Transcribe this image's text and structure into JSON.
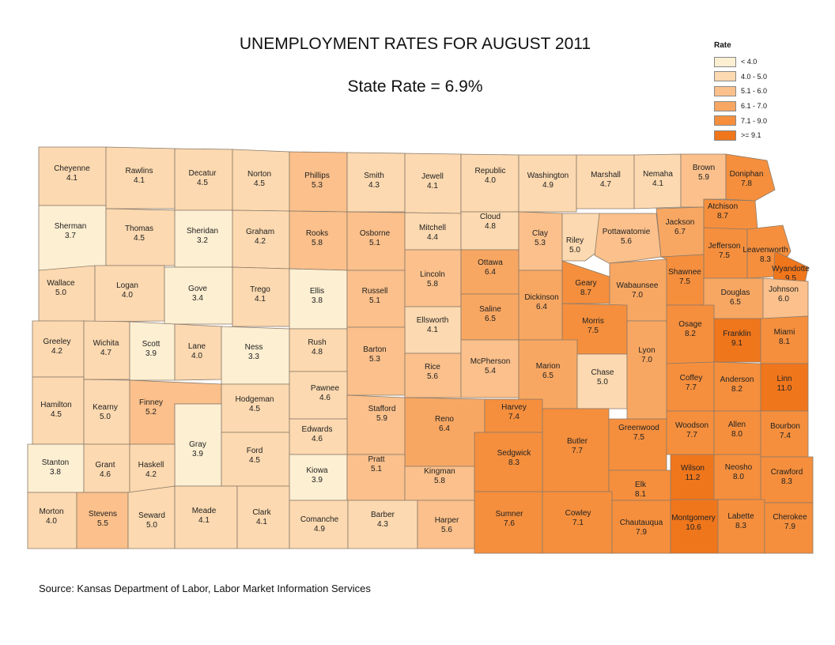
{
  "title": "UNEMPLOYMENT RATES FOR AUGUST 2011",
  "subtitle": "State Rate = 6.9%",
  "source": "Source: Kansas Department of Labor, Labor Market Information Services",
  "legend": {
    "title": "Rate",
    "items": [
      {
        "label": "< 4.0",
        "color": "#fdefd2"
      },
      {
        "label": "4.0 - 5.0",
        "color": "#fcd9b0"
      },
      {
        "label": "5.1 - 6.0",
        "color": "#fbc08b"
      },
      {
        "label": "6.1 - 7.0",
        "color": "#f8a762"
      },
      {
        "label": "7.1 - 9.0",
        "color": "#f58f3d"
      },
      {
        "label": ">= 9.1",
        "color": "#f0761c"
      }
    ]
  },
  "counties": [
    {
      "name": "Cheyenne",
      "rate": "4.1"
    },
    {
      "name": "Rawlins",
      "rate": "4.1"
    },
    {
      "name": "Decatur",
      "rate": "4.5"
    },
    {
      "name": "Norton",
      "rate": "4.5"
    },
    {
      "name": "Phillips",
      "rate": "5.3"
    },
    {
      "name": "Smith",
      "rate": "4.3"
    },
    {
      "name": "Jewell",
      "rate": "4.1"
    },
    {
      "name": "Republic",
      "rate": "4.0"
    },
    {
      "name": "Washington",
      "rate": "4.9"
    },
    {
      "name": "Marshall",
      "rate": "4.7"
    },
    {
      "name": "Nemaha",
      "rate": "4.1"
    },
    {
      "name": "Brown",
      "rate": "5.9"
    },
    {
      "name": "Doniphan",
      "rate": "7.8"
    },
    {
      "name": "Sherman",
      "rate": "3.7"
    },
    {
      "name": "Thomas",
      "rate": "4.5"
    },
    {
      "name": "Sheridan",
      "rate": "3.2"
    },
    {
      "name": "Graham",
      "rate": "4.2"
    },
    {
      "name": "Rooks",
      "rate": "5.8"
    },
    {
      "name": "Osborne",
      "rate": "5.1"
    },
    {
      "name": "Mitchell",
      "rate": "4.4"
    },
    {
      "name": "Cloud",
      "rate": "4.8"
    },
    {
      "name": "Clay",
      "rate": "5.3"
    },
    {
      "name": "Riley",
      "rate": "5.0"
    },
    {
      "name": "Pottawatomie",
      "rate": "5.6"
    },
    {
      "name": "Jackson",
      "rate": "6.7"
    },
    {
      "name": "Atchison",
      "rate": "8.7"
    },
    {
      "name": "Jefferson",
      "rate": "7.5"
    },
    {
      "name": "Leavenworth",
      "rate": "8.3"
    },
    {
      "name": "Wyandotte",
      "rate": "9.5"
    },
    {
      "name": "Wallace",
      "rate": "5.0"
    },
    {
      "name": "Logan",
      "rate": "4.0"
    },
    {
      "name": "Gove",
      "rate": "3.4"
    },
    {
      "name": "Trego",
      "rate": "4.1"
    },
    {
      "name": "Ellis",
      "rate": "3.8"
    },
    {
      "name": "Russell",
      "rate": "5.1"
    },
    {
      "name": "Lincoln",
      "rate": "5.8"
    },
    {
      "name": "Ottawa",
      "rate": "6.4"
    },
    {
      "name": "Dickinson",
      "rate": "6.4"
    },
    {
      "name": "Geary",
      "rate": "8.7"
    },
    {
      "name": "Wabaunsee",
      "rate": "7.0"
    },
    {
      "name": "Shawnee",
      "rate": "7.5"
    },
    {
      "name": "Douglas",
      "rate": "6.5"
    },
    {
      "name": "Johnson",
      "rate": "6.0"
    },
    {
      "name": "Ellsworth",
      "rate": "4.1"
    },
    {
      "name": "Saline",
      "rate": "6.5"
    },
    {
      "name": "Morris",
      "rate": "7.5"
    },
    {
      "name": "Greeley",
      "rate": "4.2"
    },
    {
      "name": "Wichita",
      "rate": "4.7"
    },
    {
      "name": "Scott",
      "rate": "3.9"
    },
    {
      "name": "Lane",
      "rate": "4.0"
    },
    {
      "name": "Ness",
      "rate": "3.3"
    },
    {
      "name": "Rush",
      "rate": "4.8"
    },
    {
      "name": "Barton",
      "rate": "5.3"
    },
    {
      "name": "Rice",
      "rate": "5.6"
    },
    {
      "name": "McPherson",
      "rate": "5.4"
    },
    {
      "name": "Marion",
      "rate": "6.5"
    },
    {
      "name": "Chase",
      "rate": "5.0"
    },
    {
      "name": "Lyon",
      "rate": "7.0"
    },
    {
      "name": "Osage",
      "rate": "8.2"
    },
    {
      "name": "Franklin",
      "rate": "9.1"
    },
    {
      "name": "Miami",
      "rate": "8.1"
    },
    {
      "name": "Hamilton",
      "rate": "4.5"
    },
    {
      "name": "Kearny",
      "rate": "5.0"
    },
    {
      "name": "Finney",
      "rate": "5.2"
    },
    {
      "name": "Hodgeman",
      "rate": "4.5"
    },
    {
      "name": "Pawnee",
      "rate": "4.6"
    },
    {
      "name": "Stafford",
      "rate": "5.9"
    },
    {
      "name": "Reno",
      "rate": "6.4"
    },
    {
      "name": "Harvey",
      "rate": "7.4"
    },
    {
      "name": "Butler",
      "rate": "7.7"
    },
    {
      "name": "Greenwood",
      "rate": "7.5"
    },
    {
      "name": "Coffey",
      "rate": "7.7"
    },
    {
      "name": "Anderson",
      "rate": "8.2"
    },
    {
      "name": "Linn",
      "rate": "11.0"
    },
    {
      "name": "Edwards",
      "rate": "4.6"
    },
    {
      "name": "Gray",
      "rate": "3.9"
    },
    {
      "name": "Ford",
      "rate": "4.5"
    },
    {
      "name": "Woodson",
      "rate": "7.7"
    },
    {
      "name": "Allen",
      "rate": "8.0"
    },
    {
      "name": "Bourbon",
      "rate": "7.4"
    },
    {
      "name": "Stanton",
      "rate": "3.8"
    },
    {
      "name": "Grant",
      "rate": "4.6"
    },
    {
      "name": "Haskell",
      "rate": "4.2"
    },
    {
      "name": "Kiowa",
      "rate": "3.9"
    },
    {
      "name": "Pratt",
      "rate": "5.1"
    },
    {
      "name": "Kingman",
      "rate": "5.8"
    },
    {
      "name": "Sedgwick",
      "rate": "8.3"
    },
    {
      "name": "Wilson",
      "rate": "11.2"
    },
    {
      "name": "Neosho",
      "rate": "8.0"
    },
    {
      "name": "Crawford",
      "rate": "8.3"
    },
    {
      "name": "Elk",
      "rate": "8.1"
    },
    {
      "name": "Morton",
      "rate": "4.0"
    },
    {
      "name": "Stevens",
      "rate": "5.5"
    },
    {
      "name": "Seward",
      "rate": "5.0"
    },
    {
      "name": "Meade",
      "rate": "4.1"
    },
    {
      "name": "Clark",
      "rate": "4.1"
    },
    {
      "name": "Comanche",
      "rate": "4.9"
    },
    {
      "name": "Barber",
      "rate": "4.3"
    },
    {
      "name": "Harper",
      "rate": "5.6"
    },
    {
      "name": "Sumner",
      "rate": "7.6"
    },
    {
      "name": "Cowley",
      "rate": "7.1"
    },
    {
      "name": "Chautauqua",
      "rate": "7.9"
    },
    {
      "name": "Montgomery",
      "rate": "10.6"
    },
    {
      "name": "Labette",
      "rate": "8.3"
    },
    {
      "name": "Cherokee",
      "rate": "7.9"
    }
  ]
}
